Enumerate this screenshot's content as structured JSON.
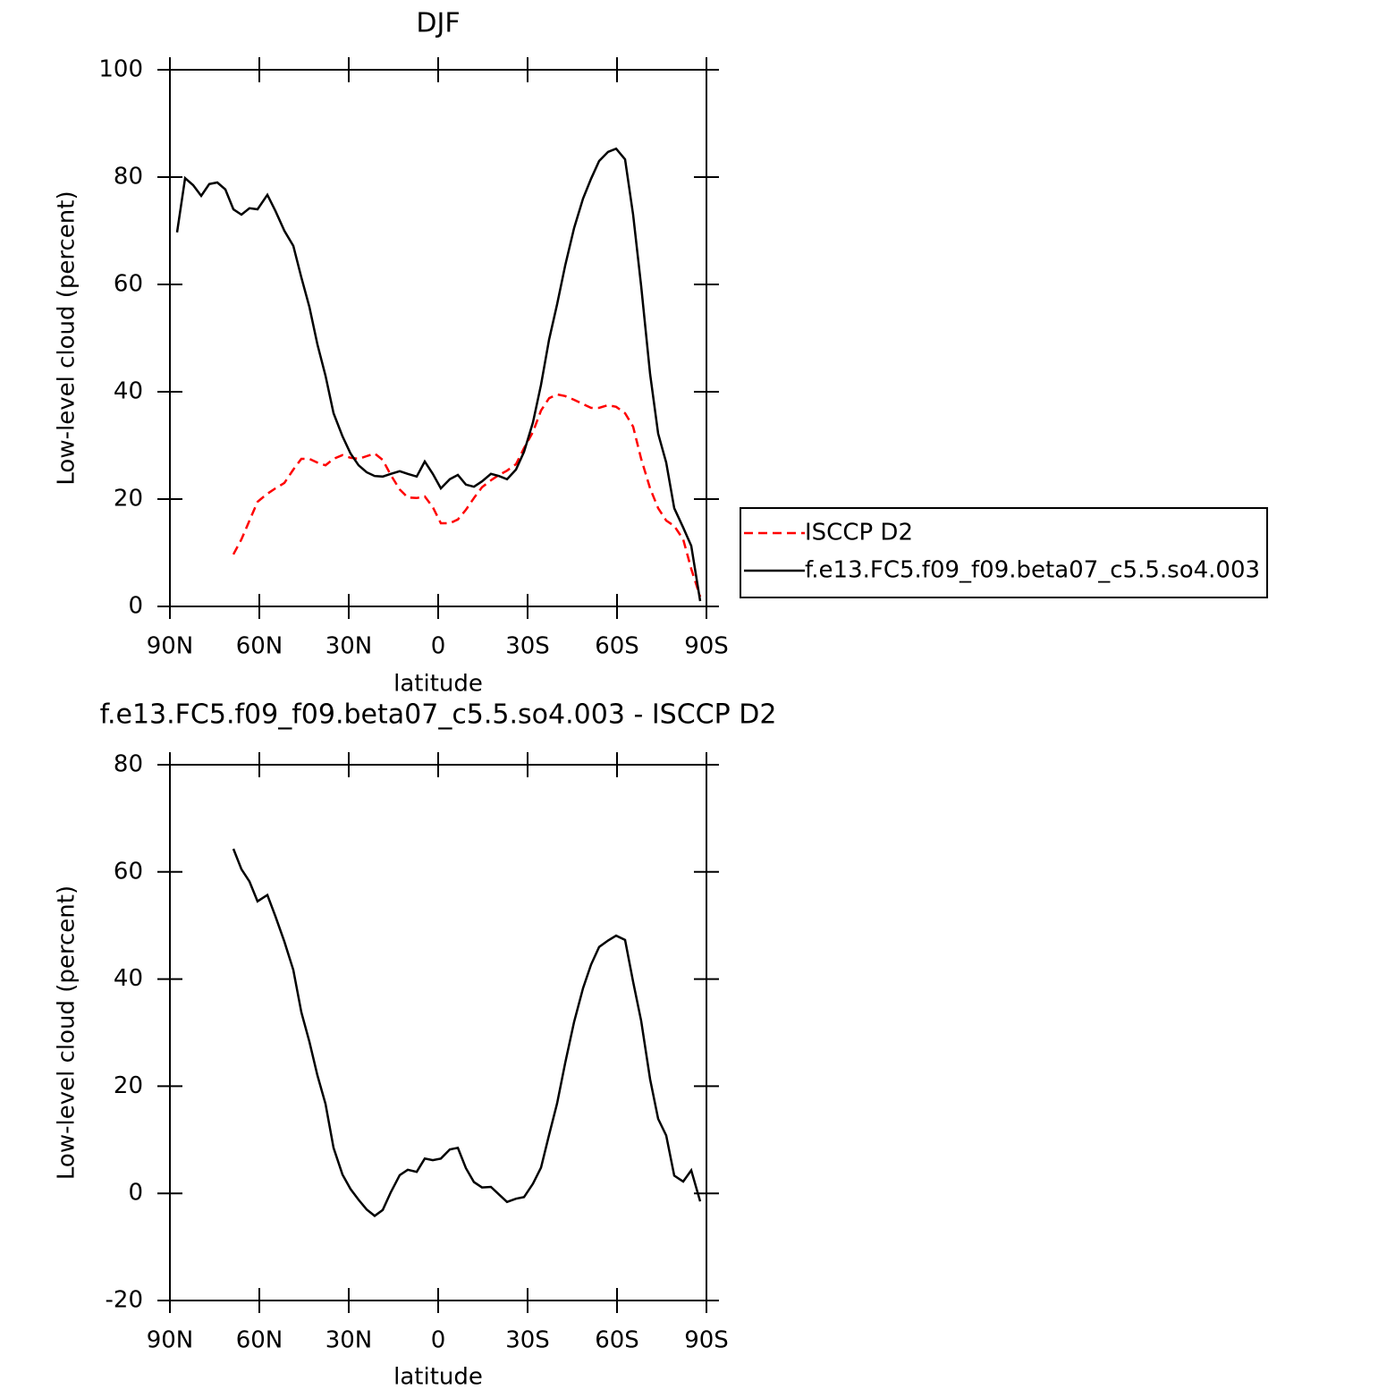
{
  "chart_data": [
    {
      "type": "line",
      "title": "DJF",
      "xlabel": "latitude",
      "ylabel": "Low-level cloud (percent)",
      "x": [
        87.6,
        84.9,
        82.2,
        79.5,
        76.8,
        74.1,
        71.4,
        68.7,
        66,
        63.3,
        60.6,
        57.3,
        54.6,
        51.6,
        48.6,
        45.9,
        43.2,
        40.5,
        37.8,
        35.1,
        32.1,
        29.4,
        26.7,
        24,
        21.3,
        18.6,
        15.9,
        12.9,
        10.2,
        7.2,
        4.5,
        1.8,
        -0.9,
        -3.9,
        -6.6,
        -9.3,
        -12,
        -14.7,
        -17.7,
        -20.4,
        -23.1,
        -26.1,
        -28.8,
        -31.8,
        -34.5,
        -37.2,
        -39.9,
        -42.6,
        -45.6,
        -48.6,
        -51.3,
        -54,
        -57,
        -59.7,
        -62.7,
        -65.4,
        -68.1,
        -71.1,
        -73.8,
        -76.5,
        -79.2,
        -82.2,
        -84.9,
        -87.9
      ],
      "series": [
        {
          "name": "ISCCP D2",
          "color": "#ff0000",
          "dash": true,
          "values": [
            null,
            null,
            null,
            null,
            null,
            null,
            null,
            9.7,
            12.5,
            16,
            19.5,
            21,
            22,
            23,
            25.5,
            27.5,
            27.5,
            26.8,
            26.3,
            27.5,
            28.2,
            27.7,
            27.5,
            28,
            28.5,
            27.3,
            24.5,
            21.8,
            20.3,
            20.2,
            20.5,
            18.5,
            15.5,
            15.5,
            16.2,
            18,
            20.2,
            22.2,
            23.5,
            24.5,
            25.3,
            26.5,
            29.5,
            32.5,
            36.5,
            38.8,
            39.5,
            39.2,
            38.5,
            37.7,
            37,
            37,
            37.5,
            37.2,
            36,
            33.5,
            27.5,
            22,
            18.3,
            16,
            15,
            12.5,
            7,
            1.8
          ]
        },
        {
          "name": "f.e13.FC5.f09_f09.beta07_c5.5.so4.003",
          "color": "#000000",
          "dash": false,
          "values": [
            69.7,
            79.8,
            78.5,
            76.5,
            78.7,
            79,
            77.7,
            74,
            73,
            74.2,
            74,
            76.7,
            73.7,
            70,
            67.2,
            61.3,
            55.8,
            48.8,
            43,
            36,
            31.7,
            28.5,
            26.3,
            25,
            24.3,
            24.2,
            24.7,
            25.2,
            24.7,
            24.2,
            27,
            24.7,
            22,
            23.7,
            24.5,
            22.7,
            22.3,
            23.3,
            24.7,
            24.3,
            23.7,
            25.5,
            28.8,
            34.3,
            41.3,
            49.7,
            56.3,
            63.5,
            70.5,
            76,
            79.7,
            83,
            84.7,
            85.3,
            83.3,
            73,
            59.7,
            43.3,
            32.2,
            26.8,
            18.3,
            14.7,
            11.3,
            1
          ]
        }
      ],
      "xlim": [
        90,
        -90
      ],
      "xticks": [
        {
          "value": 90,
          "label": "90N"
        },
        {
          "value": 60,
          "label": "60N"
        },
        {
          "value": 30,
          "label": "30N"
        },
        0,
        {
          "value": -30,
          "label": "30S"
        },
        {
          "value": -60,
          "label": "60S"
        },
        {
          "value": -90,
          "label": "90S"
        }
      ],
      "ylim": [
        0,
        100
      ],
      "yticks": [
        0,
        20,
        40,
        60,
        80,
        100
      ],
      "legend": "right"
    },
    {
      "type": "line",
      "title": "f.e13.FC5.f09_f09.beta07_c5.5.so4.003 - ISCCP D2",
      "xlabel": "latitude",
      "ylabel": "Low-level cloud (percent)",
      "x": [
        68.7,
        66,
        63.3,
        60.6,
        57.3,
        54.6,
        51.6,
        48.6,
        45.9,
        43.2,
        40.5,
        37.8,
        35.1,
        32.1,
        29.4,
        26.7,
        24,
        21.3,
        18.6,
        15.9,
        12.9,
        10.2,
        7.2,
        4.5,
        1.8,
        -0.9,
        -3.9,
        -6.6,
        -9.3,
        -12,
        -14.7,
        -17.7,
        -20.4,
        -23.1,
        -26.1,
        -28.8,
        -31.8,
        -34.5,
        -37.2,
        -39.9,
        -42.6,
        -45.6,
        -48.6,
        -51.3,
        -54,
        -57,
        -59.7,
        -62.7,
        -65.4,
        -68.1,
        -71.1,
        -73.8,
        -76.5,
        -79.2,
        -82.2,
        -84.9,
        -87.9
      ],
      "series": [
        {
          "color": "#000000",
          "dash": false,
          "values": [
            64.3,
            60.5,
            58.2,
            54.5,
            55.7,
            51.7,
            47,
            41.7,
            33.8,
            28.3,
            22,
            16.7,
            8.5,
            3.5,
            0.8,
            -1.2,
            -3,
            -4.2,
            -3.1,
            0.2,
            3.4,
            4.4,
            4,
            6.5,
            6.2,
            6.5,
            8.2,
            8.5,
            4.7,
            2.1,
            1.1,
            1.2,
            -0.2,
            -1.6,
            -1,
            -0.7,
            1.8,
            4.8,
            10.9,
            16.8,
            24.3,
            32,
            38.3,
            42.7,
            46,
            47.2,
            48.1,
            47.3,
            39.5,
            32.2,
            21.3,
            13.9,
            10.8,
            3.3,
            2.2,
            4.3,
            -1.5
          ]
        }
      ],
      "xlim": [
        90,
        -90
      ],
      "xticks": [
        {
          "value": 90,
          "label": "90N"
        },
        {
          "value": 60,
          "label": "60N"
        },
        {
          "value": 30,
          "label": "30N"
        },
        0,
        {
          "value": -30,
          "label": "30S"
        },
        {
          "value": -60,
          "label": "60S"
        },
        {
          "value": -90,
          "label": "90S"
        }
      ],
      "ylim": [
        -20,
        80
      ],
      "yticks": [
        -20,
        0,
        20,
        40,
        60,
        80
      ]
    }
  ]
}
